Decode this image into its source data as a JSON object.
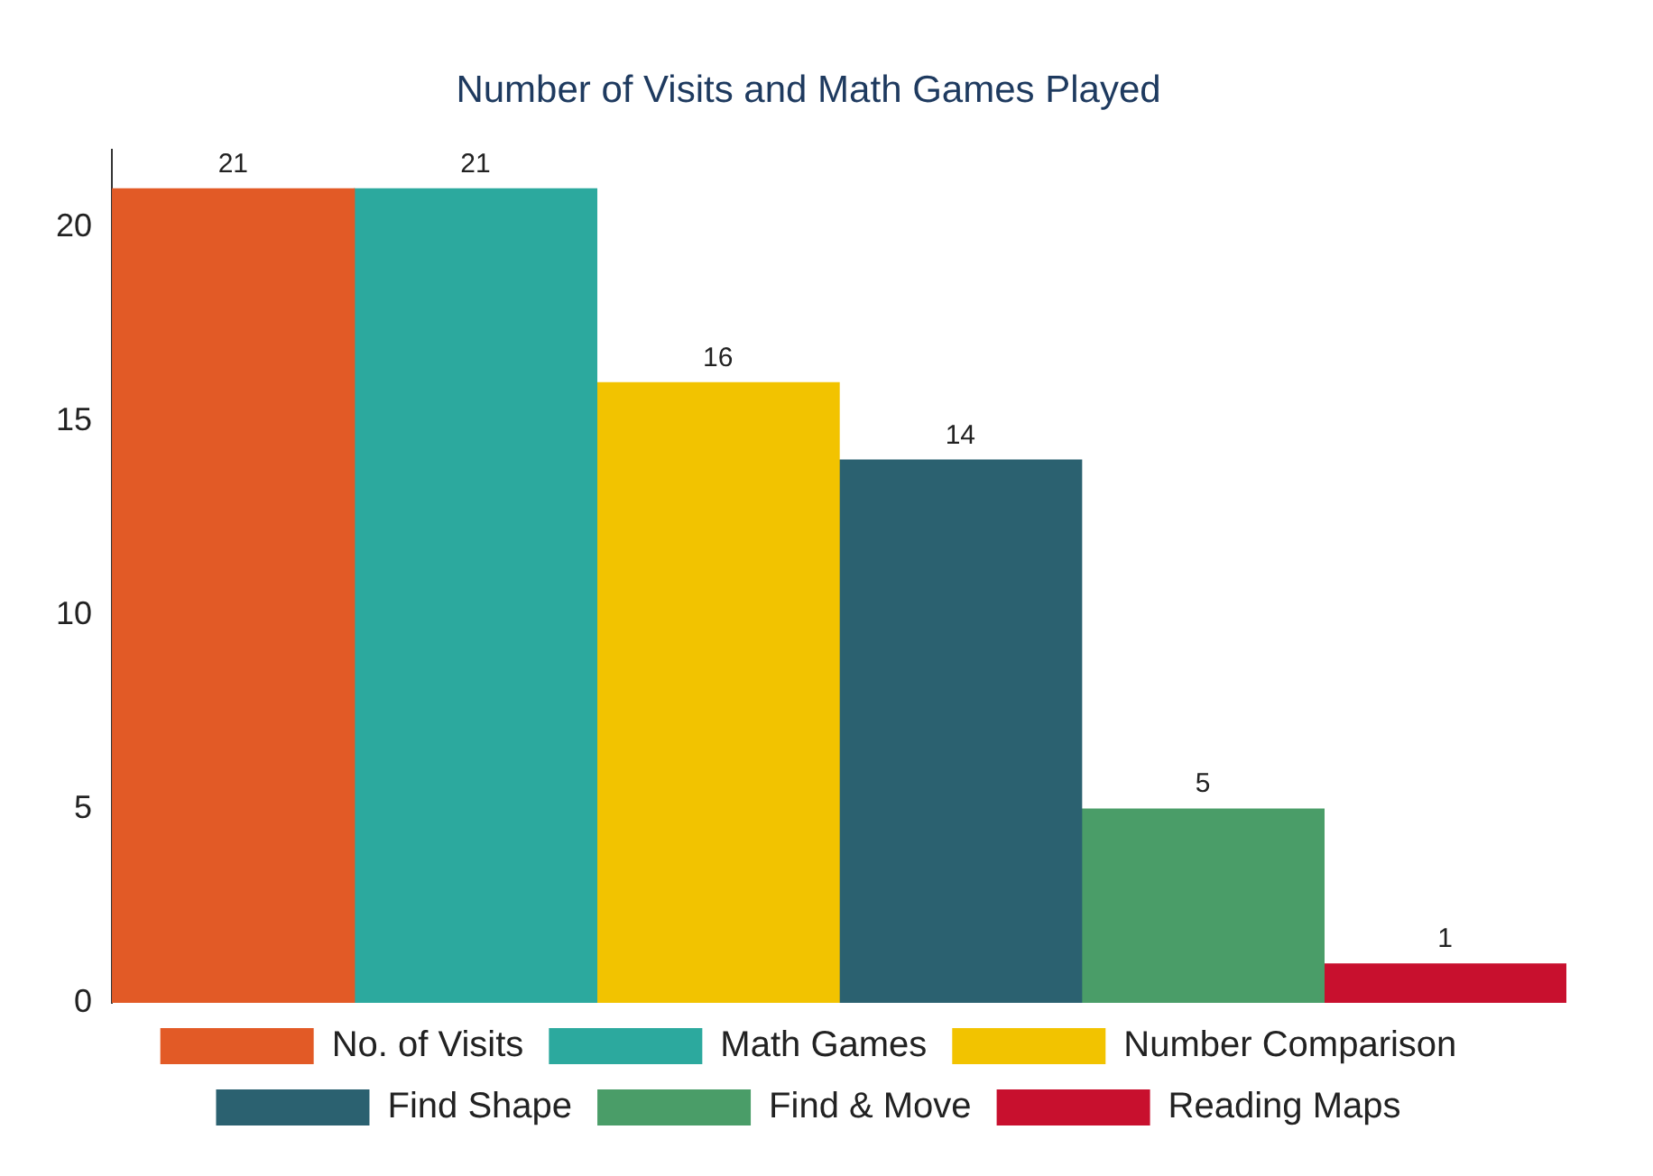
{
  "chart_data": {
    "type": "bar",
    "title": "Number of Visits and Math Games Played",
    "categories": [
      null
    ],
    "series": [
      {
        "name": "No. of Visits",
        "color": "#e25a26",
        "values": [
          21
        ]
      },
      {
        "name": "Math Games",
        "color": "#2ca99e",
        "values": [
          21
        ]
      },
      {
        "name": "Number Comparison",
        "color": "#f2c300",
        "values": [
          16
        ]
      },
      {
        "name": "Find Shape",
        "color": "#2b6170",
        "values": [
          14
        ]
      },
      {
        "name": "Find & Move",
        "color": "#4a9d68",
        "values": [
          5
        ]
      },
      {
        "name": "Reading Maps",
        "color": "#c8102e",
        "values": [
          1
        ]
      }
    ],
    "ylim": [
      0,
      22
    ],
    "yticks": [
      0,
      5,
      10,
      15,
      20
    ],
    "grid": false,
    "legend": "bottom",
    "data_labels": true
  }
}
